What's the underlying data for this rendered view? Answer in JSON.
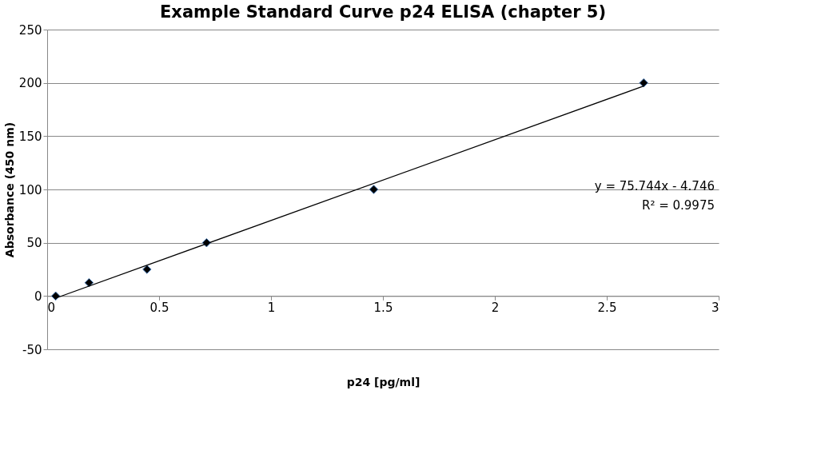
{
  "chart_data": {
    "type": "scatter",
    "title": "Example Standard Curve p24 ELISA (chapter 5)",
    "xlabel": "p24 [pg/ml]",
    "ylabel": "Absorbance (450 nm)",
    "x": [
      0.038,
      0.187,
      0.446,
      0.712,
      1.459,
      2.665
    ],
    "series": [
      {
        "color": "#000000",
        "values": [
          0,
          12.5,
          25,
          50,
          100,
          200
        ],
        "marker": "diamond"
      },
      {
        "type": "line",
        "color": "#000000",
        "x": [
          0.038,
          2.665
        ],
        "values": [
          -2,
          197
        ],
        "marker": "none"
      }
    ],
    "xlim": [
      0,
      3
    ],
    "xticks": [
      0,
      0.5,
      1,
      1.5,
      2,
      2.5,
      3
    ],
    "ylim": [
      -50,
      250
    ],
    "yticks": [
      -50,
      0,
      50,
      100,
      150,
      200,
      250
    ],
    "grid": "y",
    "annotations": [
      "y = 75.744x - 4.746",
      "R² = 0.9975"
    ]
  }
}
